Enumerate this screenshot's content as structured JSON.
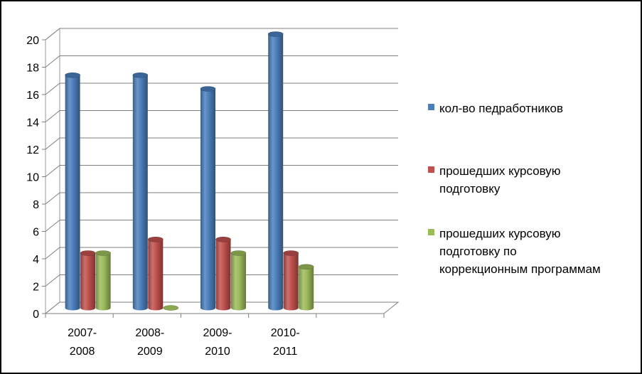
{
  "chart_data": {
    "type": "bar",
    "title": "",
    "xlabel": "",
    "ylabel": "",
    "ylim": [
      0,
      20
    ],
    "yticks": [
      0,
      2,
      4,
      6,
      8,
      10,
      12,
      14,
      16,
      18,
      20
    ],
    "grid": true,
    "legend_position": "right",
    "categories": [
      [
        "2007-",
        "2008"
      ],
      [
        "2008-",
        "2009"
      ],
      [
        "2009-",
        "2010"
      ],
      [
        "2010-",
        "2011"
      ]
    ],
    "series": [
      {
        "name": "кол-во педработников",
        "values": [
          17,
          17,
          16,
          20
        ],
        "color": "#4a7ebb"
      },
      {
        "name": "прошедших курсовую подготовку",
        "values": [
          4,
          5,
          5,
          4
        ],
        "color": "#c0504d"
      },
      {
        "name": "прошедших курсовую подготовку по коррекционным программам",
        "values": [
          4,
          0,
          4,
          3
        ],
        "color": "#9bbb59"
      }
    ]
  },
  "legend": [
    {
      "lines": [
        "кол-во педработников"
      ],
      "color": "#4a7ebb"
    },
    {
      "lines": [
        "прошедших курсовую",
        "подготовку"
      ],
      "color": "#c0504d"
    },
    {
      "lines": [
        "прошедших курсовую",
        "подготовку по",
        "коррекционным программам"
      ],
      "color": "#9bbb59"
    }
  ]
}
